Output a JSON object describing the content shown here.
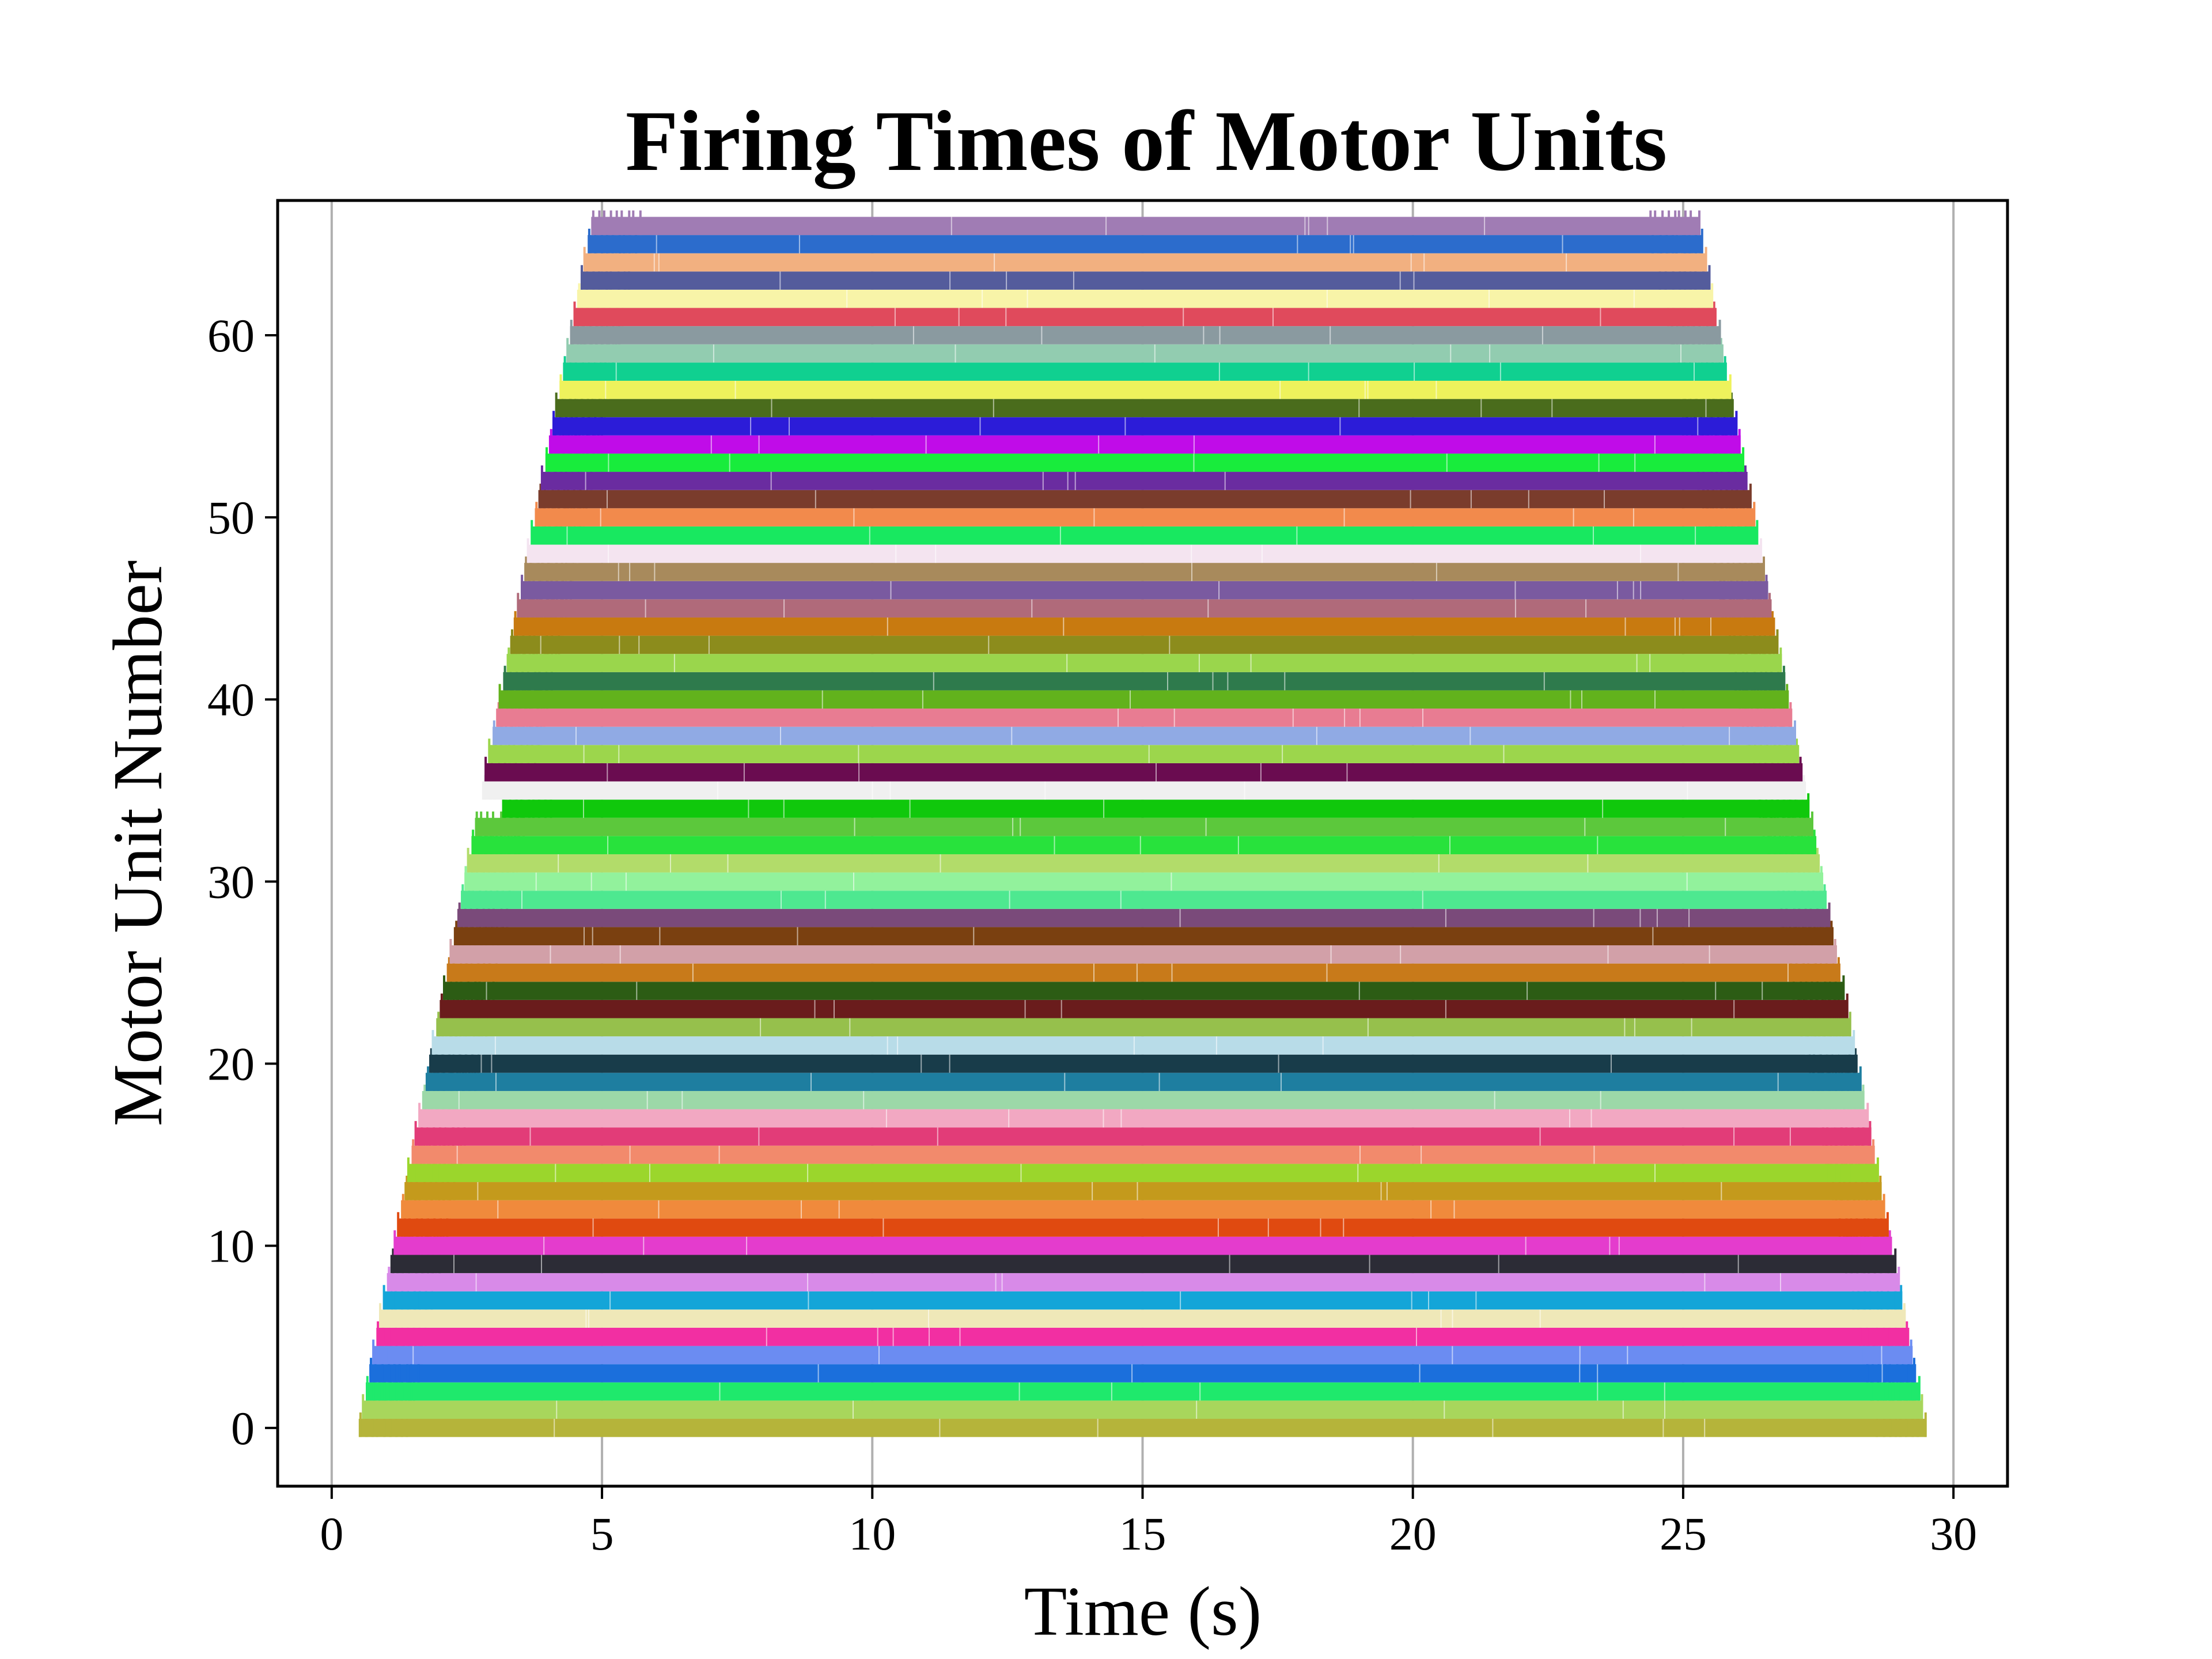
{
  "chart_data": {
    "type": "eventplot",
    "title": "Firing Times of Motor Units",
    "xlabel": "Time (s)",
    "ylabel": "Motor Unit Number",
    "xlim": [
      -1,
      31
    ],
    "ylim": [
      -3.2,
      67.4
    ],
    "x_ticks": [
      0,
      5,
      10,
      15,
      20,
      25,
      30
    ],
    "x_tick_labels": [
      "0",
      "5",
      "10",
      "15",
      "20",
      "25",
      "30"
    ],
    "y_ticks": [
      0,
      10,
      20,
      30,
      40,
      50,
      60
    ],
    "y_tick_labels": [
      "0",
      "10",
      "20",
      "30",
      "40",
      "50",
      "60"
    ],
    "grid": "vertical",
    "legend": "none",
    "recruitment": {
      "first_unit_start_s": 0.5,
      "last_unit_start_s": 4.8,
      "first_unit_end_s": 29.5,
      "last_unit_end_s": 25.3,
      "gap_unit": 34,
      "gap_start_shift_s": 0.45
    },
    "units": [
      {
        "id": 0,
        "color": "#b5b43a"
      },
      {
        "id": 1,
        "color": "#a8d65c"
      },
      {
        "id": 2,
        "color": "#1fe96c"
      },
      {
        "id": 3,
        "color": "#1b6fdc"
      },
      {
        "id": 4,
        "color": "#6b8cf2"
      },
      {
        "id": 5,
        "color": "#f22fa2"
      },
      {
        "id": 6,
        "color": "#efe8b8"
      },
      {
        "id": 7,
        "color": "#14a5d8"
      },
      {
        "id": 8,
        "color": "#d88ae8"
      },
      {
        "id": 9,
        "color": "#2c2c36"
      },
      {
        "id": 10,
        "color": "#e43ccd"
      },
      {
        "id": 11,
        "color": "#e04a10"
      },
      {
        "id": 12,
        "color": "#f08a3c"
      },
      {
        "id": 13,
        "color": "#c49a1c"
      },
      {
        "id": 14,
        "color": "#9bd62c"
      },
      {
        "id": 15,
        "color": "#f28a6c"
      },
      {
        "id": 16,
        "color": "#e23c78"
      },
      {
        "id": 17,
        "color": "#f2a8c2"
      },
      {
        "id": 18,
        "color": "#9cd8a8"
      },
      {
        "id": 19,
        "color": "#1e7ea0"
      },
      {
        "id": 20,
        "color": "#183c4a"
      },
      {
        "id": 21,
        "color": "#b8dce8"
      },
      {
        "id": 22,
        "color": "#96c04c"
      },
      {
        "id": 23,
        "color": "#6a1c1c"
      },
      {
        "id": 24,
        "color": "#2c5c14"
      },
      {
        "id": 25,
        "color": "#c87a1a"
      },
      {
        "id": 26,
        "color": "#d2a0a8"
      },
      {
        "id": 27,
        "color": "#7a4010"
      },
      {
        "id": 28,
        "color": "#7a4a7a"
      },
      {
        "id": 29,
        "color": "#4ee890"
      },
      {
        "id": 30,
        "color": "#92f29c"
      },
      {
        "id": 31,
        "color": "#b2dc6a"
      },
      {
        "id": 32,
        "color": "#28e23c"
      },
      {
        "id": 33,
        "color": "#5cc83c"
      },
      {
        "id": 34,
        "color": "#10c80c"
      },
      {
        "id": 35,
        "color": "#f0f0f0"
      },
      {
        "id": 36,
        "color": "#6a0c50"
      },
      {
        "id": 37,
        "color": "#9cd64c"
      },
      {
        "id": 38,
        "color": "#90aae4"
      },
      {
        "id": 39,
        "color": "#e87c92"
      },
      {
        "id": 40,
        "color": "#62b21c"
      },
      {
        "id": 41,
        "color": "#2e7a4c"
      },
      {
        "id": 42,
        "color": "#9ad64c"
      },
      {
        "id": 43,
        "color": "#8c8c1c"
      },
      {
        "id": 44,
        "color": "#c87a10"
      },
      {
        "id": 45,
        "color": "#b06a7a"
      },
      {
        "id": 46,
        "color": "#7a5aa0"
      },
      {
        "id": 47,
        "color": "#a88a5c"
      },
      {
        "id": 48,
        "color": "#f4e4f0"
      },
      {
        "id": 49,
        "color": "#18e860"
      },
      {
        "id": 50,
        "color": "#f28a4c"
      },
      {
        "id": 51,
        "color": "#7a3c2c"
      },
      {
        "id": 52,
        "color": "#6a2ca0"
      },
      {
        "id": 53,
        "color": "#18ec3c"
      },
      {
        "id": 54,
        "color": "#c00ce8"
      },
      {
        "id": 55,
        "color": "#2c1cd8"
      },
      {
        "id": 56,
        "color": "#4a6c1c"
      },
      {
        "id": 57,
        "color": "#eef25c"
      },
      {
        "id": 58,
        "color": "#10d090"
      },
      {
        "id": 59,
        "color": "#92ccb0"
      },
      {
        "id": 60,
        "color": "#8a9aa0"
      },
      {
        "id": 61,
        "color": "#e04a5c"
      },
      {
        "id": 62,
        "color": "#f8f4a8"
      },
      {
        "id": 63,
        "color": "#545c9c"
      },
      {
        "id": 64,
        "color": "#f2b080"
      },
      {
        "id": 65,
        "color": "#2c6ccc"
      },
      {
        "id": 66,
        "color": "#a07cb4"
      }
    ]
  }
}
